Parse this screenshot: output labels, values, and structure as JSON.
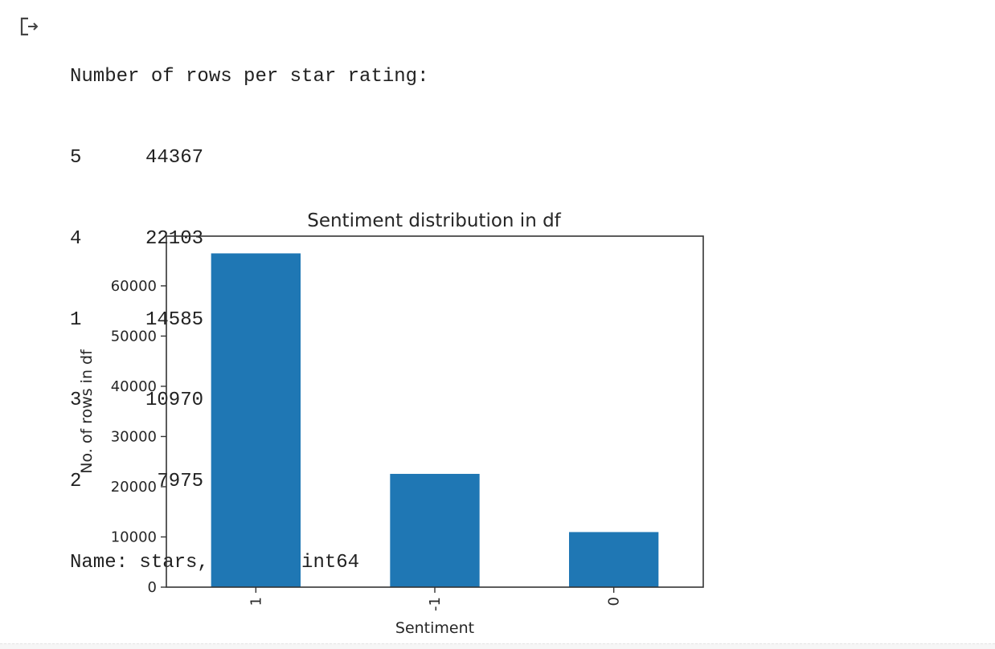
{
  "cell_output": {
    "icon": "output-arrow-icon",
    "header": "Number of rows per star rating:",
    "value_counts": [
      {
        "index": "5",
        "value": "44367"
      },
      {
        "index": "4",
        "value": "22103"
      },
      {
        "index": "1",
        "value": "14585"
      },
      {
        "index": "3",
        "value": "10970"
      },
      {
        "index": "2",
        "value": "7975"
      }
    ],
    "footer": "Name: stars, dtype: int64"
  },
  "chart_data": {
    "type": "bar",
    "title": "Sentiment distribution in df",
    "xlabel": "Sentiment",
    "ylabel": "No. of rows in df",
    "categories": [
      "1",
      "-1",
      "0"
    ],
    "values": [
      66470,
      22560,
      10970
    ],
    "ylim": [
      0,
      69900
    ],
    "yticks": [
      0,
      10000,
      20000,
      30000,
      40000,
      50000,
      60000
    ],
    "bar_color": "#1f77b4",
    "grid": false,
    "legend": "none"
  }
}
